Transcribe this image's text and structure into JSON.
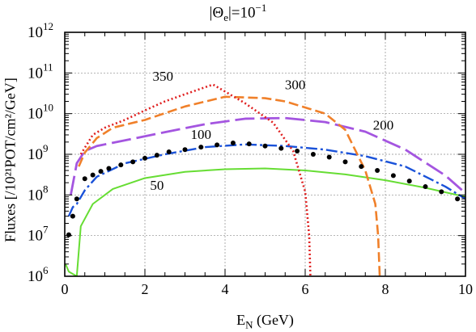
{
  "chart_data": {
    "type": "line",
    "title_prefix": "|Θ",
    "title_sub": "e",
    "title_suffix": "|=10",
    "title_exp": "−1",
    "xlabel_main": "E",
    "xlabel_sub": "N",
    "xlabel_unit": " (GeV)",
    "ylabel": "Fluxes [/10²¹POT/cm²/GeV]",
    "xlim": [
      0,
      10
    ],
    "ylim": [
      1000000.0,
      1000000000000.0
    ],
    "yscale": "log",
    "grid": true,
    "x_ticks": [
      "0",
      "2",
      "4",
      "6",
      "8",
      "10"
    ],
    "y_ticks": [
      {
        "base": "10",
        "exp": "6"
      },
      {
        "base": "10",
        "exp": "7"
      },
      {
        "base": "10",
        "exp": "8"
      },
      {
        "base": "10",
        "exp": "9"
      },
      {
        "base": "10",
        "exp": "10"
      },
      {
        "base": "10",
        "exp": "11"
      },
      {
        "base": "10",
        "exp": "12"
      }
    ],
    "series": [
      {
        "label": "50",
        "label_at": [
          2.3,
          135000000.0
        ],
        "color": "#66dd33",
        "dash": "",
        "width": 2,
        "points": [
          [
            0.02,
            2000000.0
          ],
          [
            0.1,
            1300000.0
          ],
          [
            0.3,
            1000000.0
          ],
          [
            0.4,
            17000000.0
          ],
          [
            0.7,
            60000000.0
          ],
          [
            1.2,
            140000000.0
          ],
          [
            2,
            260000000.0
          ],
          [
            3,
            370000000.0
          ],
          [
            4,
            430000000.0
          ],
          [
            5,
            450000000.0
          ],
          [
            6,
            400000000.0
          ],
          [
            7,
            320000000.0
          ],
          [
            8,
            230000000.0
          ],
          [
            9,
            150000000.0
          ],
          [
            10,
            90000000.0
          ]
        ]
      },
      {
        "label": "100",
        "label_at": [
          3.4,
          2400000000.0
        ],
        "color": "#1a52d9",
        "dash": "14 4 3 4",
        "width": 2.4,
        "points": [
          [
            0.1,
            30000000.0
          ],
          [
            0.2,
            50000000.0
          ],
          [
            0.3,
            60000000.0
          ],
          [
            0.5,
            130000000.0
          ],
          [
            0.8,
            280000000.0
          ],
          [
            1.5,
            600000000.0
          ],
          [
            2.5,
            1000000000.0
          ],
          [
            3.5,
            1500000000.0
          ],
          [
            4.5,
            1750000000.0
          ],
          [
            5.5,
            1600000000.0
          ],
          [
            6.5,
            1300000000.0
          ],
          [
            7.5,
            900000000.0
          ],
          [
            8.5,
            500000000.0
          ],
          [
            9.5,
            160000000.0
          ],
          [
            10,
            80000000.0
          ]
        ]
      },
      {
        "label": "200",
        "label_at": [
          7.95,
          4000000000.0
        ],
        "color": "#a455e0",
        "dash": "24 7",
        "width": 2.8,
        "points": [
          [
            0.15,
            100000000.0
          ],
          [
            0.3,
            600000000.0
          ],
          [
            0.5,
            1200000000.0
          ],
          [
            0.8,
            1600000000.0
          ],
          [
            1.5,
            2200000000.0
          ],
          [
            2.5,
            3500000000.0
          ],
          [
            3.5,
            5500000000.0
          ],
          [
            4.5,
            7500000000.0
          ],
          [
            5.5,
            7800000000.0
          ],
          [
            6.5,
            6200000000.0
          ],
          [
            7.5,
            3600000000.0
          ],
          [
            8.5,
            1300000000.0
          ],
          [
            9.5,
            300000000.0
          ],
          [
            10,
            110000000.0
          ]
        ]
      },
      {
        "label": "300",
        "label_at": [
          5.75,
          40000000000.0
        ],
        "color": "#f0802a",
        "dash": "12 5",
        "width": 2.6,
        "points": [
          [
            0.35,
            500000000.0
          ],
          [
            0.5,
            1100000000.0
          ],
          [
            0.8,
            2500000000.0
          ],
          [
            1.2,
            4500000000.0
          ],
          [
            2,
            7000000000.0
          ],
          [
            3,
            15000000000.0
          ],
          [
            4,
            26000000000.0
          ],
          [
            5,
            24000000000.0
          ],
          [
            5.5,
            20000000000.0
          ],
          [
            6.5,
            10000000000.0
          ],
          [
            7,
            4000000000.0
          ],
          [
            7.5,
            400000000.0
          ],
          [
            7.75,
            60000000.0
          ],
          [
            7.82,
            10000000.0
          ],
          [
            7.86,
            1000000.0
          ]
        ]
      },
      {
        "label": "350",
        "label_at": [
          2.45,
          65000000000.0
        ],
        "color": "#e02020",
        "dash": "2 3",
        "width": 2.6,
        "points": [
          [
            0.4,
            1000000000.0
          ],
          [
            0.7,
            3000000000.0
          ],
          [
            1,
            4500000000.0
          ],
          [
            1.5,
            7000000000.0
          ],
          [
            2,
            12000000000.0
          ],
          [
            2.5,
            20000000000.0
          ],
          [
            3,
            30000000000.0
          ],
          [
            3.7,
            52000000000.0
          ],
          [
            4.5,
            18000000000.0
          ],
          [
            5.2,
            6000000000.0
          ],
          [
            5.7,
            1200000000.0
          ],
          [
            6,
            120000000.0
          ],
          [
            6.1,
            10000000.0
          ],
          [
            6.13,
            1000000.0
          ]
        ]
      }
    ],
    "scatter": {
      "color": "#000000",
      "points": [
        [
          0.1,
          10500000.0
        ],
        [
          0.2,
          30000000.0
        ],
        [
          0.3,
          80000000.0
        ],
        [
          0.5,
          250000000.0
        ],
        [
          0.7,
          310000000.0
        ],
        [
          0.9,
          380000000.0
        ],
        [
          1.1,
          450000000.0
        ],
        [
          1.4,
          550000000.0
        ],
        [
          1.7,
          650000000.0
        ],
        [
          2,
          800000000.0
        ],
        [
          2.3,
          950000000.0
        ],
        [
          2.6,
          1150000000.0
        ],
        [
          3,
          1300000000.0
        ],
        [
          3.4,
          1500000000.0
        ],
        [
          3.8,
          1700000000.0
        ],
        [
          4.2,
          1900000000.0
        ],
        [
          4.6,
          1800000000.0
        ],
        [
          5,
          1600000000.0
        ],
        [
          5.4,
          1400000000.0
        ],
        [
          5.8,
          1200000000.0
        ],
        [
          6.2,
          1000000000.0
        ],
        [
          6.6,
          850000000.0
        ],
        [
          7,
          650000000.0
        ],
        [
          7.4,
          500000000.0
        ],
        [
          7.8,
          400000000.0
        ],
        [
          8.2,
          300000000.0
        ],
        [
          8.6,
          220000000.0
        ],
        [
          9,
          160000000.0
        ],
        [
          9.4,
          120000000.0
        ],
        [
          9.8,
          80000000.0
        ]
      ]
    }
  }
}
